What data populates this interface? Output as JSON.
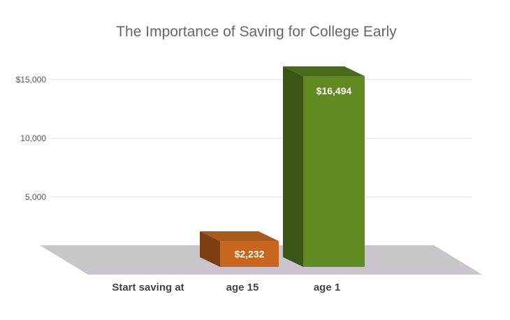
{
  "chart_data": {
    "type": "bar",
    "title": "The Importance of Saving for College Early",
    "xlabel": "Start saving at",
    "ylabel": "",
    "categories": [
      "age 15",
      "age 1"
    ],
    "values": [
      2232,
      16494
    ],
    "data_labels": [
      "$2,232",
      "$16,494"
    ],
    "ylim": [
      0,
      17000
    ],
    "yticks": [
      5000,
      10000,
      15000
    ],
    "ytick_labels": [
      "5,000",
      "10,000",
      "$15,000"
    ],
    "grid": true,
    "legend": "none",
    "style": "3d",
    "colors": {
      "age 15": {
        "front": "#c8651f",
        "top": "#a85a1c",
        "side": "#7d3f12"
      },
      "age 1": {
        "front": "#628a23",
        "top": "#4a6a1d",
        "side": "#3a5516"
      },
      "floor": "#c9c5cb"
    }
  }
}
